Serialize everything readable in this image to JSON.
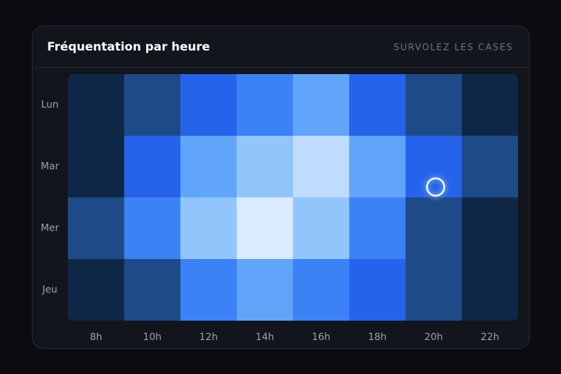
{
  "chart_data": {
    "type": "heatmap",
    "title": "Fréquentation par heure",
    "hint": "SURVOLEZ LES CASES",
    "categories": [
      "8h",
      "10h",
      "12h",
      "14h",
      "16h",
      "18h",
      "20h",
      "22h"
    ],
    "rows": [
      "Lun",
      "Mar",
      "Mer",
      "Jeu"
    ],
    "values": [
      [
        0,
        1,
        2,
        3,
        4,
        2,
        1,
        0
      ],
      [
        0,
        2,
        4,
        5,
        6,
        4,
        2,
        1
      ],
      [
        1,
        3,
        5,
        7,
        5,
        3,
        1,
        0
      ],
      [
        0,
        1,
        3,
        4,
        3,
        2,
        1,
        0
      ]
    ],
    "colors": [
      "#0f2747",
      "#1e4b87",
      "#2563eb",
      "#3b82f6",
      "#60a5fa",
      "#93c5fd",
      "#bfdbfe",
      "#dbeafe"
    ]
  }
}
